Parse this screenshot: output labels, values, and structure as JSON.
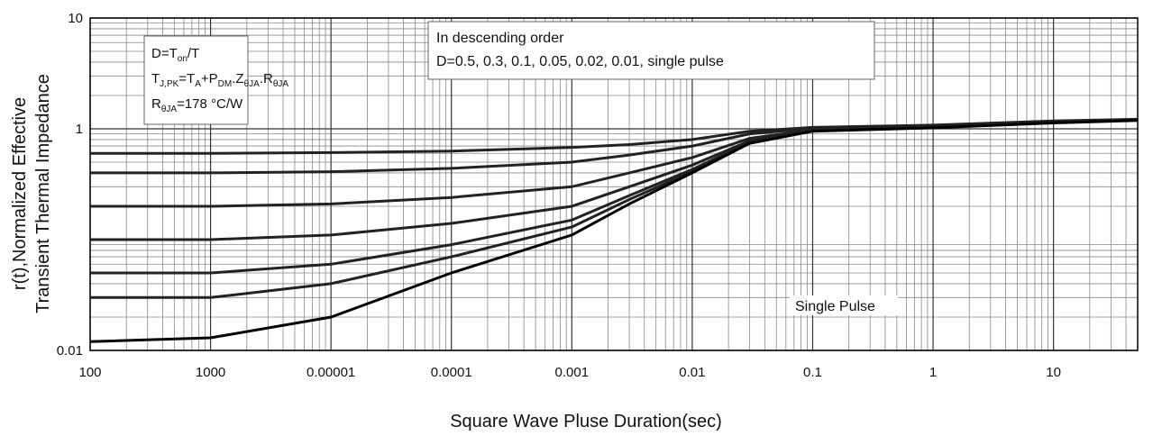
{
  "chart_data": {
    "type": "line",
    "y_label_lines": [
      "r(t),Normalized Effective",
      "Transient Thermal Impedance"
    ],
    "x_label": "Square Wave Pluse Duration(sec)",
    "log_x": true,
    "log_y": true,
    "grid": true,
    "minor_grid": true,
    "xlim": [
      1e-07,
      50
    ],
    "ylim": [
      0.01,
      10
    ],
    "xticks": [
      {
        "value": 1e-07,
        "label": "100"
      },
      {
        "value": 1e-06,
        "label": "1000"
      },
      1e-05,
      0.0001,
      0.001,
      0.01,
      0.1,
      1,
      10
    ],
    "yticks": [
      {
        "value": 0.01,
        "label": "0.01"
      },
      1,
      10
    ],
    "x": [
      1e-07,
      1e-06,
      1e-05,
      0.0001,
      0.001,
      0.003,
      0.01,
      0.03,
      0.1,
      1,
      10,
      50
    ],
    "series": [
      {
        "name": "D=0.5",
        "color": "#222222",
        "values": [
          0.6,
          0.6,
          0.61,
          0.63,
          0.68,
          0.72,
          0.8,
          0.95,
          1.03,
          1.08,
          1.18,
          1.22
        ]
      },
      {
        "name": "D=0.3",
        "color": "#222222",
        "values": [
          0.4,
          0.4,
          0.41,
          0.44,
          0.5,
          0.58,
          0.7,
          0.9,
          1.01,
          1.06,
          1.16,
          1.21
        ]
      },
      {
        "name": "D=0.1",
        "color": "#222222",
        "values": [
          0.2,
          0.2,
          0.21,
          0.24,
          0.3,
          0.4,
          0.55,
          0.82,
          0.98,
          1.04,
          1.15,
          1.2
        ]
      },
      {
        "name": "D=0.05",
        "color": "#222222",
        "values": [
          0.1,
          0.1,
          0.11,
          0.14,
          0.2,
          0.3,
          0.47,
          0.78,
          0.97,
          1.03,
          1.14,
          1.2
        ]
      },
      {
        "name": "D=0.02",
        "color": "#222222",
        "values": [
          0.05,
          0.05,
          0.06,
          0.09,
          0.15,
          0.25,
          0.43,
          0.76,
          0.96,
          1.03,
          1.14,
          1.2
        ]
      },
      {
        "name": "D=0.01",
        "color": "#222222",
        "values": [
          0.03,
          0.03,
          0.04,
          0.07,
          0.13,
          0.23,
          0.41,
          0.75,
          0.96,
          1.03,
          1.14,
          1.2
        ]
      },
      {
        "name": "single pulse",
        "color": "#000000",
        "values": [
          0.012,
          0.013,
          0.02,
          0.05,
          0.11,
          0.21,
          0.4,
          0.74,
          0.95,
          1.02,
          1.13,
          1.19
        ]
      }
    ],
    "formula_box": [
      [
        "D=T",
        {
          "sub": "on"
        },
        "/T"
      ],
      [
        "T",
        {
          "sub": "J,PK"
        },
        "=T",
        {
          "sub": "A"
        },
        "+P",
        {
          "sub": "DM"
        },
        ".Z",
        {
          "sub": "θJA"
        },
        ".R",
        {
          "sub": "θJA"
        }
      ],
      [
        "R",
        {
          "sub": "θJA"
        },
        "=178 °C/W"
      ]
    ],
    "order_box": [
      "In descending order",
      "D=0.5, 0.3, 0.1, 0.05, 0.02, 0.01, single pulse"
    ],
    "single_pulse_label": "Single Pulse"
  }
}
